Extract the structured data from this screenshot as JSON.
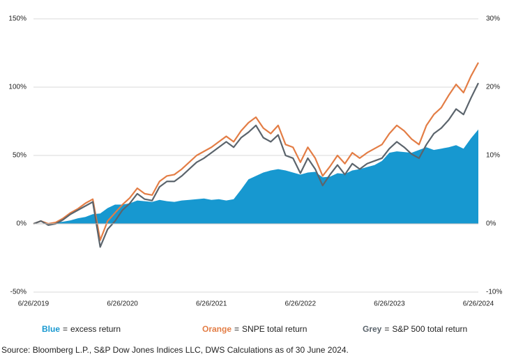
{
  "chart_data": {
    "type": "line",
    "categories": [
      "6/26/2019",
      null,
      null,
      null,
      null,
      null,
      null,
      null,
      null,
      null,
      null,
      null,
      "6/26/2020",
      null,
      null,
      null,
      null,
      null,
      null,
      null,
      null,
      null,
      null,
      null,
      "6/26/2021",
      null,
      null,
      null,
      null,
      null,
      null,
      null,
      null,
      null,
      null,
      null,
      "6/26/2022",
      null,
      null,
      null,
      null,
      null,
      null,
      null,
      null,
      null,
      null,
      null,
      "6/26/2023",
      null,
      null,
      null,
      null,
      null,
      null,
      null,
      null,
      null,
      null,
      null,
      "6/26/2024"
    ],
    "series": [
      {
        "name": "excess return",
        "key": "Blue",
        "color": "#1798d0",
        "axis": "y2",
        "fill": true,
        "values": [
          0,
          0,
          0.1,
          0.2,
          0.3,
          0.5,
          0.8,
          1.0,
          1.4,
          1.5,
          2.3,
          2.8,
          2.8,
          3.0,
          3.4,
          3.3,
          3.2,
          3.5,
          3.3,
          3.2,
          3.4,
          3.5,
          3.6,
          3.7,
          3.5,
          3.6,
          3.4,
          3.6,
          5.0,
          6.5,
          7.0,
          7.5,
          7.8,
          8.0,
          7.8,
          7.5,
          7.2,
          7.5,
          7.6,
          6.8,
          6.9,
          7.4,
          7.3,
          7.8,
          8.0,
          8.3,
          8.6,
          9.2,
          10.4,
          10.6,
          10.5,
          10.4,
          10.8,
          11.2,
          10.8,
          11.0,
          11.2,
          11.5,
          11.0,
          12.5,
          13.8
        ]
      },
      {
        "name": "SNPE total return",
        "key": "Orange",
        "color": "#e37d45",
        "values": [
          0,
          2,
          0,
          1,
          4,
          8,
          11,
          15,
          18,
          -12,
          2,
          8,
          14,
          19,
          26,
          22,
          21,
          31,
          35,
          36,
          40,
          45,
          50,
          53,
          56,
          60,
          64,
          60,
          68,
          74,
          78,
          70,
          66,
          72,
          58,
          56,
          45,
          56,
          48,
          35,
          42,
          50,
          44,
          52,
          48,
          52,
          55,
          58,
          66,
          72,
          68,
          62,
          58,
          72,
          80,
          85,
          94,
          102,
          96,
          108,
          118
        ]
      },
      {
        "name": "S&P 500 total return",
        "key": "Grey",
        "color": "#5b646c",
        "values": [
          0,
          2,
          -1,
          0,
          3,
          7,
          10,
          13,
          16,
          -17,
          -4,
          2,
          10,
          15,
          22,
          18,
          17,
          27,
          31,
          31,
          35,
          40,
          45,
          48,
          52,
          56,
          60,
          56,
          63,
          67,
          72,
          63,
          60,
          65,
          50,
          48,
          37,
          48,
          40,
          28,
          36,
          43,
          36,
          44,
          40,
          44,
          46,
          48,
          55,
          60,
          56,
          51,
          48,
          58,
          66,
          70,
          76,
          84,
          80,
          92,
          103
        ]
      }
    ],
    "legend_separator": "=",
    "ylim": [
      -50,
      150
    ],
    "yticks": [
      {
        "value": -50,
        "label": "-50%"
      },
      {
        "value": 0,
        "label": "0%"
      },
      {
        "value": 50,
        "label": "50%"
      },
      {
        "value": 100,
        "label": "100%"
      },
      {
        "value": 150,
        "label": "150%"
      }
    ],
    "y2lim": [
      -10,
      30
    ],
    "y2ticks": [
      {
        "value": -10,
        "label": "-10%"
      },
      {
        "value": 0,
        "label": "0%"
      },
      {
        "value": 10,
        "label": "10%"
      },
      {
        "value": 20,
        "label": "20%"
      },
      {
        "value": 30,
        "label": "30%"
      }
    ],
    "grid": true,
    "source": "Source:  Bloomberg L.P., S&P Dow Jones Indices LLC, DWS Calculations as of 30 June 2024."
  }
}
